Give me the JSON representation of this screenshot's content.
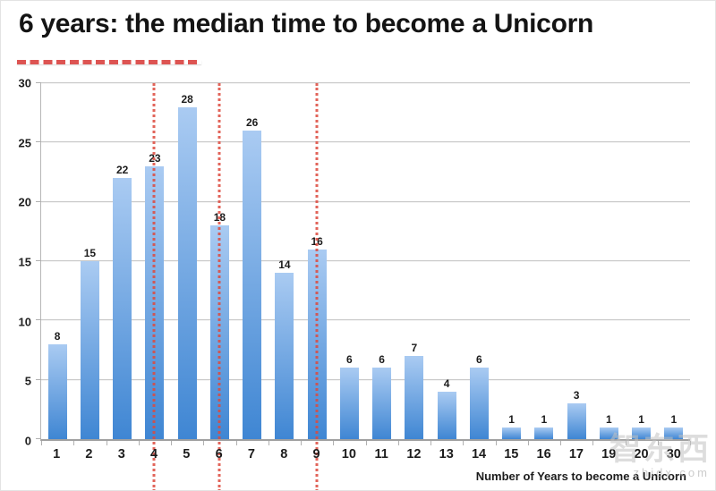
{
  "slide": {
    "title": "6 years: the median time to become a Unicorn"
  },
  "watermark": {
    "logo_text": "智东西",
    "site_text": "zhidx.com"
  },
  "chart_data": {
    "type": "bar",
    "title": "6 years: the median time to become a Unicorn",
    "categories": [
      "1",
      "2",
      "3",
      "4",
      "5",
      "6",
      "7",
      "8",
      "9",
      "10",
      "11",
      "12",
      "13",
      "14",
      "15",
      "16",
      "17",
      "19",
      "20",
      "30"
    ],
    "values": [
      8,
      15,
      22,
      23,
      28,
      18,
      26,
      14,
      16,
      6,
      6,
      7,
      4,
      6,
      1,
      1,
      3,
      1,
      1,
      1
    ],
    "data_labels": true,
    "xlabel": "Number of Years to become a Unicorn",
    "ylabel": "",
    "ylim": [
      0,
      30
    ],
    "yticks": [
      0,
      5,
      10,
      15,
      20,
      25,
      30
    ],
    "grid": true,
    "legend": false,
    "bar_gradient_top": "#aacbf2",
    "bar_gradient_bottom": "#3f86d3",
    "marker_categories": [
      "4",
      "6",
      "9"
    ],
    "marker_color": "#dd4a3e",
    "accent_underline_color": "#dd5452"
  }
}
